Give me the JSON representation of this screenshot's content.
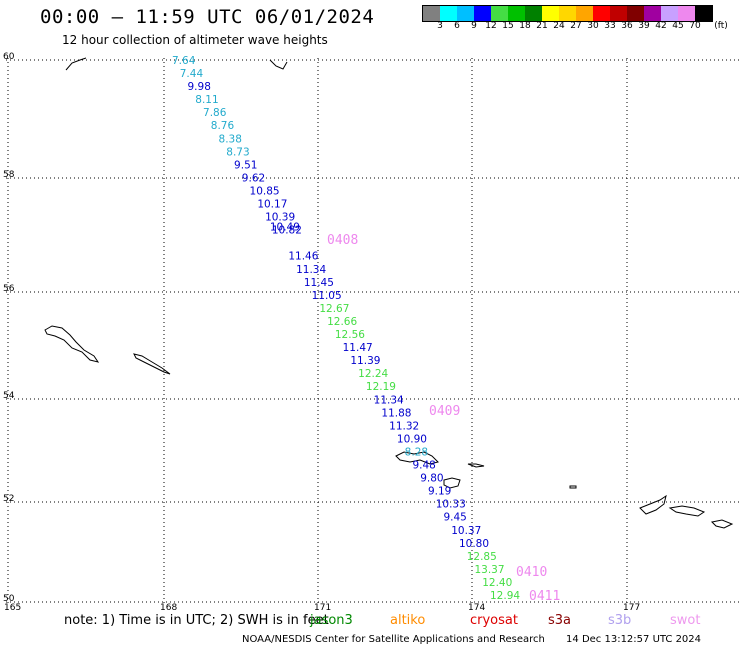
{
  "header": {
    "title": "00:00 – 11:59 UTC 06/01/2024",
    "subtitle": "12 hour collection of altimeter wave heights"
  },
  "legend": {
    "unit": "(ft)",
    "colors": [
      "#808080",
      "#00ffff",
      "#00bfff",
      "#0000ff",
      "#44dd44",
      "#00c000",
      "#008000",
      "#ffff00",
      "#ffd700",
      "#ffa500",
      "#ff0000",
      "#c00000",
      "#800000",
      "#a000a0",
      "#c8a0ff",
      "#ee88ee",
      "#000000"
    ],
    "labels": [
      "3",
      "6",
      "9",
      "12",
      "15",
      "18",
      "21",
      "24",
      "27",
      "30",
      "33",
      "36",
      "39",
      "42",
      "45",
      "70"
    ]
  },
  "map": {
    "lon_ticks": [
      "165",
      "168",
      "171",
      "174",
      "177"
    ],
    "lat_ticks": [
      "60",
      "58",
      "56",
      "54",
      "52",
      "50"
    ],
    "track": [
      {
        "v": "7.64",
        "c": "#22aacc"
      },
      {
        "v": "7.44",
        "c": "#22aacc"
      },
      {
        "v": "9.98",
        "c": "#0000cc"
      },
      {
        "v": "8.11",
        "c": "#22aacc"
      },
      {
        "v": "7.86",
        "c": "#22aacc"
      },
      {
        "v": "8.76",
        "c": "#22aacc"
      },
      {
        "v": "8.38",
        "c": "#22aacc"
      },
      {
        "v": "8.73",
        "c": "#22aacc"
      },
      {
        "v": "9.51",
        "c": "#0000cc"
      },
      {
        "v": "9.62",
        "c": "#0000cc"
      },
      {
        "v": "10.85",
        "c": "#0000cc"
      },
      {
        "v": "10.17",
        "c": "#0000cc"
      },
      {
        "v": "10.39",
        "c": "#0000cc"
      },
      {
        "v": "10.49",
        "c": "#0000cc"
      },
      {
        "v": "10.82",
        "c": "#0000cc"
      },
      {
        "v": "11.46",
        "c": "#0000cc"
      },
      {
        "v": "11.34",
        "c": "#0000cc"
      },
      {
        "v": "11.45",
        "c": "#0000cc"
      },
      {
        "v": "11.05",
        "c": "#0000cc"
      },
      {
        "v": "12.67",
        "c": "#44dd44"
      },
      {
        "v": "12.66",
        "c": "#44dd44"
      },
      {
        "v": "12.56",
        "c": "#44dd44"
      },
      {
        "v": "11.47",
        "c": "#0000cc"
      },
      {
        "v": "11.39",
        "c": "#0000cc"
      },
      {
        "v": "12.24",
        "c": "#44dd44"
      },
      {
        "v": "12.19",
        "c": "#44dd44"
      },
      {
        "v": "11.34",
        "c": "#0000cc"
      },
      {
        "v": "11.88",
        "c": "#0000cc"
      },
      {
        "v": "11.32",
        "c": "#0000cc"
      },
      {
        "v": "10.90",
        "c": "#0000cc"
      },
      {
        "v": "8.28",
        "c": "#22aacc"
      },
      {
        "v": "9.48",
        "c": "#0000cc"
      },
      {
        "v": "9.80",
        "c": "#0000cc"
      },
      {
        "v": "9.19",
        "c": "#0000cc"
      },
      {
        "v": "10.33",
        "c": "#0000cc"
      },
      {
        "v": "9.45",
        "c": "#0000cc"
      },
      {
        "v": "10.37",
        "c": "#0000cc"
      },
      {
        "v": "10.80",
        "c": "#0000cc"
      },
      {
        "v": "12.85",
        "c": "#44dd44"
      },
      {
        "v": "13.37",
        "c": "#44dd44"
      },
      {
        "v": "12.40",
        "c": "#44dd44"
      },
      {
        "v": "12.94",
        "c": "#44dd44"
      }
    ],
    "time_labels": [
      "0408",
      "0409",
      "0410",
      "0411"
    ],
    "time_color": "#ee88ee"
  },
  "footer": {
    "note": "note: 1) Time is in UTC; 2) SWH is in feet",
    "satellites": [
      {
        "name": "jason3",
        "color": "#008800"
      },
      {
        "name": "altiko",
        "color": "#ff8c00"
      },
      {
        "name": "cryosat",
        "color": "#dd0000"
      },
      {
        "name": "s3a",
        "color": "#880000"
      },
      {
        "name": "s3b",
        "color": "#b0a0ee"
      },
      {
        "name": "swot",
        "color": "#ee99ee"
      }
    ],
    "agency": "NOAA/NESDIS Center for Satellite Applications and Research",
    "timestamp": "14 Dec 13:12:57 UTC 2024"
  }
}
